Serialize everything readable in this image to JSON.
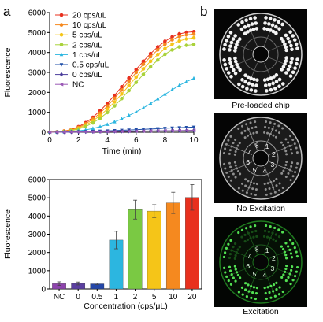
{
  "panels": {
    "a": "a",
    "b": "b"
  },
  "chart_data": [
    {
      "type": "line",
      "xlabel": "Time (min)",
      "ylabel": "Fluorescence",
      "xlim": [
        0,
        10
      ],
      "ylim": [
        0,
        6000
      ],
      "x_ticks": [
        0,
        2,
        4,
        6,
        8,
        10
      ],
      "y_ticks": [
        0,
        1000,
        2000,
        3000,
        4000,
        5000,
        6000
      ],
      "grid": false,
      "legend": "top-left",
      "x": [
        0,
        0.5,
        1,
        1.5,
        2,
        2.5,
        3,
        3.5,
        4,
        4.5,
        5,
        5.5,
        6,
        6.5,
        7,
        7.5,
        8,
        8.5,
        9,
        9.5,
        10
      ],
      "series": [
        {
          "name": "20 cps/uL",
          "color": "#e8301e",
          "marker": "circle",
          "values": [
            0,
            20,
            60,
            140,
            280,
            480,
            750,
            1080,
            1450,
            1850,
            2280,
            2720,
            3150,
            3560,
            3940,
            4280,
            4560,
            4780,
            4930,
            5010,
            5040
          ]
        },
        {
          "name": "10 cps/uL",
          "color": "#f5891f",
          "marker": "circle",
          "values": [
            0,
            15,
            50,
            120,
            240,
            420,
            660,
            960,
            1310,
            1700,
            2120,
            2560,
            3000,
            3410,
            3790,
            4130,
            4420,
            4640,
            4800,
            4880,
            4920
          ]
        },
        {
          "name": "5 cps/uL",
          "color": "#f5c518",
          "marker": "circle",
          "values": [
            0,
            12,
            40,
            100,
            200,
            360,
            570,
            840,
            1160,
            1520,
            1920,
            2340,
            2770,
            3180,
            3560,
            3900,
            4190,
            4420,
            4580,
            4680,
            4730
          ]
        },
        {
          "name": "2 cps/uL",
          "color": "#a9d23a",
          "marker": "circle",
          "values": [
            0,
            10,
            30,
            80,
            160,
            290,
            470,
            700,
            990,
            1320,
            1690,
            2090,
            2500,
            2900,
            3280,
            3620,
            3910,
            4130,
            4280,
            4360,
            4400
          ]
        },
        {
          "name": "1 cps/uL",
          "color": "#2cb6e0",
          "marker": "triangle-up",
          "values": [
            0,
            5,
            15,
            35,
            70,
            120,
            190,
            280,
            390,
            520,
            670,
            840,
            1020,
            1220,
            1440,
            1670,
            1900,
            2130,
            2350,
            2540,
            2700
          ]
        },
        {
          "name": "0.5 cps/uL",
          "color": "#1f4fa8",
          "marker": "triangle-down",
          "values": [
            0,
            3,
            8,
            15,
            25,
            35,
            45,
            58,
            70,
            85,
            100,
            115,
            130,
            150,
            165,
            180,
            200,
            215,
            230,
            245,
            260
          ]
        },
        {
          "name": "0 cps/uL",
          "color": "#4b3e9c",
          "marker": "diamond",
          "values": [
            0,
            2,
            5,
            10,
            15,
            20,
            25,
            30,
            35,
            40,
            45,
            50,
            55,
            60,
            65,
            70,
            75,
            80,
            85,
            90,
            95
          ]
        },
        {
          "name": "NC",
          "color": "#9b59b6",
          "marker": "triangle-left",
          "values": [
            0,
            2,
            4,
            8,
            12,
            16,
            20,
            25,
            30,
            35,
            40,
            45,
            50,
            55,
            60,
            65,
            70,
            75,
            80,
            85,
            90
          ]
        }
      ]
    },
    {
      "type": "bar",
      "xlabel": "Concentration (cps/μL)",
      "ylabel": "Fluorescence",
      "ylim": [
        0,
        6000
      ],
      "y_ticks": [
        0,
        1000,
        2000,
        3000,
        4000,
        5000,
        6000
      ],
      "grid": false,
      "categories": [
        "NC",
        "0",
        "0.5",
        "1",
        "2",
        "5",
        "10",
        "20"
      ],
      "values": [
        290,
        300,
        280,
        2680,
        4350,
        4270,
        4720,
        5020
      ],
      "errors": [
        100,
        80,
        40,
        480,
        520,
        350,
        580,
        700
      ],
      "colors": [
        "#8e44ad",
        "#5b3fa0",
        "#2547a8",
        "#2cb6e0",
        "#7ac943",
        "#f5c518",
        "#f5891f",
        "#e8301e"
      ]
    }
  ],
  "chip_images": [
    {
      "caption": "Pre-loaded chip",
      "labels": []
    },
    {
      "caption": "No Excitation",
      "labels": [
        "1",
        "2",
        "3",
        "4",
        "5",
        "6",
        "7",
        "8"
      ]
    },
    {
      "caption": "Excitation",
      "labels": [
        "1",
        "2",
        "3",
        "4",
        "5",
        "6",
        "7",
        "8"
      ]
    }
  ]
}
